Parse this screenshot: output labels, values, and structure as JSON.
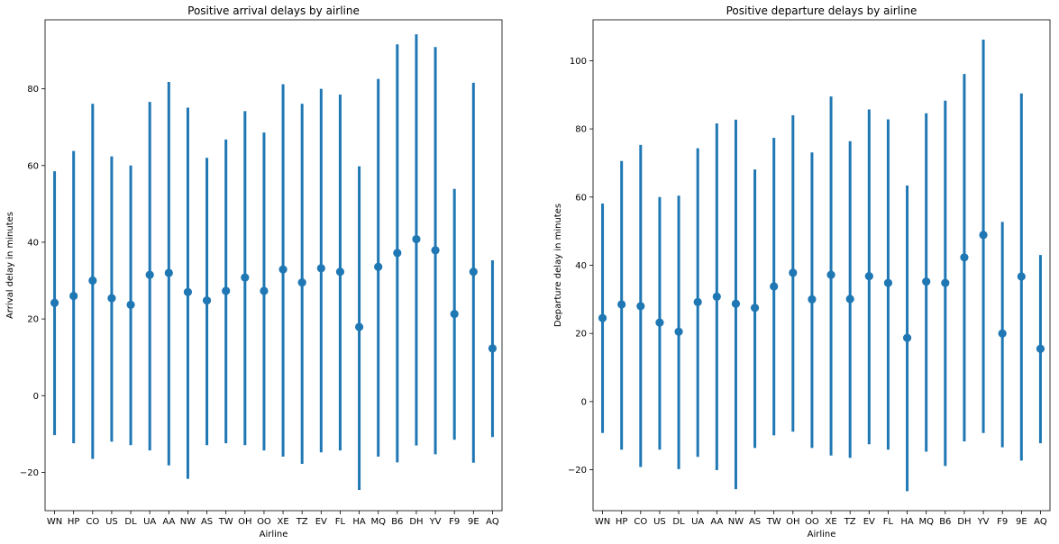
{
  "accent_color": "#1f77b4",
  "chart_data": [
    {
      "type": "pointplot",
      "title": "Positive arrival delays by airline",
      "xlabel": "Airline",
      "ylabel": "Arrival delay in minutes",
      "ylim": [
        -30,
        98
      ],
      "yticks": [
        -20,
        0,
        20,
        40,
        60,
        80
      ],
      "categories": [
        "WN",
        "HP",
        "CO",
        "US",
        "DL",
        "UA",
        "AA",
        "NW",
        "AS",
        "TW",
        "OH",
        "OO",
        "XE",
        "TZ",
        "EV",
        "FL",
        "HA",
        "MQ",
        "B6",
        "DH",
        "YV",
        "F9",
        "9E",
        "AQ"
      ],
      "series": [
        {
          "values": [
            24.2,
            26.0,
            30.0,
            25.4,
            23.7,
            31.5,
            32.0,
            27.0,
            24.8,
            27.3,
            30.8,
            27.3,
            32.9,
            29.5,
            33.2,
            32.3,
            17.9,
            33.6,
            37.2,
            40.8,
            37.9,
            21.3,
            32.3,
            12.3
          ],
          "lower": [
            -10.3,
            -12.4,
            -16.5,
            -12.0,
            -12.9,
            -14.3,
            -18.2,
            -21.7,
            -12.9,
            -12.4,
            -12.9,
            -14.3,
            -15.9,
            -17.8,
            -14.8,
            -14.3,
            -24.6,
            -15.9,
            -17.4,
            -13.0,
            -15.3,
            -11.5,
            -17.5,
            -10.8
          ],
          "upper": [
            58.5,
            63.8,
            76.1,
            62.4,
            60.0,
            76.6,
            81.8,
            75.1,
            62.0,
            66.8,
            74.2,
            68.6,
            81.2,
            76.1,
            80.0,
            78.5,
            59.8,
            82.6,
            91.6,
            94.2,
            90.9,
            53.9,
            81.6,
            35.3
          ]
        }
      ]
    },
    {
      "type": "pointplot",
      "title": "Positive departure delays by airline",
      "xlabel": "Airline",
      "ylabel": "Departure delay in minutes",
      "ylim": [
        -32,
        112
      ],
      "yticks": [
        -20,
        0,
        20,
        40,
        60,
        80,
        100
      ],
      "categories": [
        "WN",
        "HP",
        "CO",
        "US",
        "DL",
        "UA",
        "AA",
        "NW",
        "AS",
        "TW",
        "OH",
        "OO",
        "XE",
        "TZ",
        "EV",
        "FL",
        "HA",
        "MQ",
        "B6",
        "DH",
        "YV",
        "F9",
        "9E",
        "AQ"
      ],
      "series": [
        {
          "values": [
            24.5,
            28.5,
            28.0,
            23.2,
            20.5,
            29.2,
            30.8,
            28.7,
            27.5,
            33.8,
            37.8,
            30.0,
            37.2,
            30.1,
            36.8,
            34.8,
            18.7,
            35.2,
            34.8,
            42.3,
            48.9,
            20.0,
            36.7,
            15.5
          ],
          "lower": [
            -9.2,
            -14.1,
            -19.2,
            -14.1,
            -19.8,
            -16.2,
            -20.1,
            -25.7,
            -13.6,
            -9.9,
            -8.8,
            -13.6,
            -15.8,
            -16.5,
            -12.5,
            -14.1,
            -26.3,
            -14.7,
            -18.9,
            -11.7,
            -9.2,
            -13.4,
            -17.3,
            -12.2
          ],
          "upper": [
            58.1,
            70.6,
            75.3,
            60.0,
            60.4,
            74.3,
            81.6,
            82.7,
            68.1,
            77.4,
            84.0,
            73.1,
            89.5,
            76.4,
            85.7,
            82.8,
            63.4,
            84.6,
            88.3,
            96.1,
            106.2,
            52.7,
            90.4,
            43.0
          ]
        }
      ]
    }
  ]
}
